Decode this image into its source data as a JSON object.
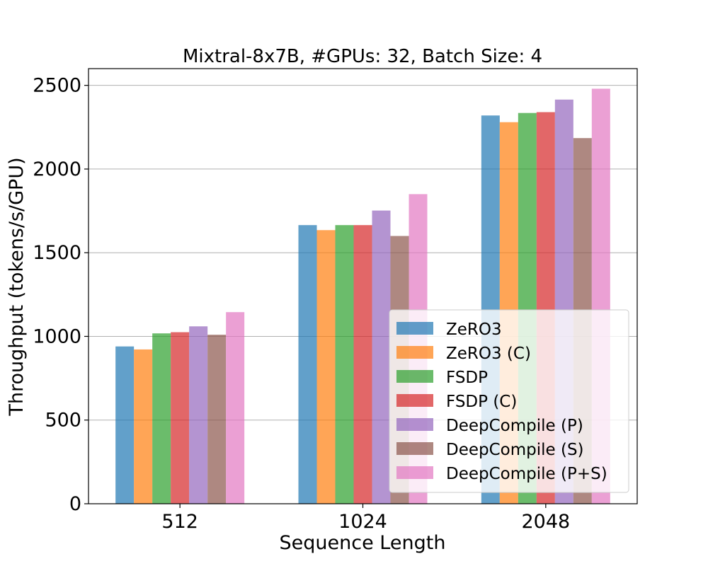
{
  "chart_data": {
    "type": "bar",
    "title": "Mixtral-8x7B, #GPUs: 32, Batch Size: 4",
    "xlabel": "Sequence Length",
    "ylabel": "Throughput (tokens/s/GPU)",
    "categories": [
      "512",
      "1024",
      "2048"
    ],
    "ylim": [
      0,
      2600
    ],
    "yticks": [
      0,
      500,
      1000,
      1500,
      2000,
      2500
    ],
    "grid": "y",
    "legend_position": "lower-right",
    "series": [
      {
        "name": "ZeRO3",
        "color": "#1f77b4",
        "values": [
          940,
          1665,
          2320
        ]
      },
      {
        "name": "ZeRO3 (C)",
        "color": "#ff7f0e",
        "values": [
          922,
          1635,
          2280
        ]
      },
      {
        "name": "FSDP",
        "color": "#2ca02c",
        "values": [
          1018,
          1665,
          2335
        ]
      },
      {
        "name": "FSDP (C)",
        "color": "#d62728",
        "values": [
          1025,
          1665,
          2340
        ]
      },
      {
        "name": "DeepCompile (P)",
        "color": "#9467bd",
        "values": [
          1060,
          1752,
          2415
        ]
      },
      {
        "name": "DeepCompile (S)",
        "color": "#8c564b",
        "values": [
          1010,
          1600,
          2185
        ]
      },
      {
        "name": "DeepCompile (P+S)",
        "color": "#e377c2",
        "values": [
          1145,
          1850,
          2480
        ]
      }
    ]
  }
}
